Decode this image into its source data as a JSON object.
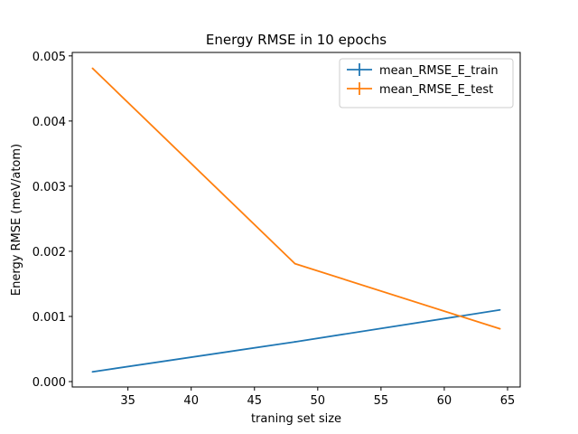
{
  "chart_data": {
    "type": "line",
    "title": "Energy RMSE in 10 epochs",
    "xlabel": "traning set size",
    "ylabel": "Energy RMSE (meV/atom)",
    "xlim": [
      30.6,
      66.0
    ],
    "ylim": [
      -8.3e-05,
      0.005053
    ],
    "xticks": [
      35,
      40,
      45,
      50,
      55,
      60,
      65
    ],
    "xtick_labels": [
      "35",
      "40",
      "45",
      "50",
      "55",
      "60",
      "65"
    ],
    "yticks": [
      0.0,
      0.001,
      0.002,
      0.003,
      0.004,
      0.005
    ],
    "ytick_labels": [
      "0.000",
      "0.001",
      "0.002",
      "0.003",
      "0.004",
      "0.005"
    ],
    "legend_position": "top-right",
    "grid": false,
    "series": [
      {
        "name": "mean_RMSE_E_train",
        "color": "#1f77b4",
        "x": [
          32.2,
          48.2,
          64.4
        ],
        "y": [
          0.00015,
          0.00061,
          0.0011
        ]
      },
      {
        "name": "mean_RMSE_E_test",
        "color": "#ff7f0e",
        "x": [
          32.2,
          48.2,
          64.4
        ],
        "y": [
          0.00481,
          0.00181,
          0.00081
        ]
      }
    ]
  }
}
